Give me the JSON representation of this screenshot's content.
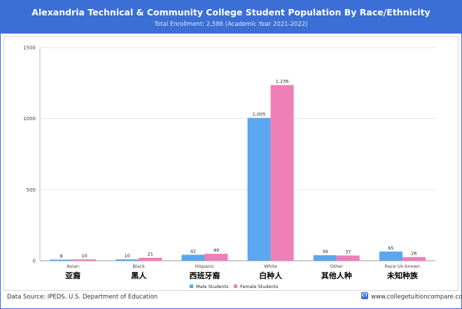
{
  "header": {
    "title": "Alexandria Technical & Community College Student Population By Race/Ethnicity",
    "subtitle": "Total Enrollment: 2,586 (Academic Year 2021-2022)"
  },
  "footer": {
    "source": "Data Source: IPEDS, U.S. Department of Education",
    "site": "www.collegetuitioncompare.com",
    "logo_text": "CT"
  },
  "colors": {
    "male": "#5aa6f0",
    "female": "#f07eb9",
    "header": "#3b6fd6"
  },
  "chart_data": {
    "type": "bar",
    "categories": [
      "Asian",
      "Black",
      "Hispanic",
      "White",
      "Other",
      "Race Un-known"
    ],
    "category_annotations": [
      "亚裔",
      "黑人",
      "西班牙裔",
      "白种人",
      "其他人种",
      "未知种族"
    ],
    "series": [
      {
        "name": "Male Students",
        "values": [
          8,
          10,
          42,
          1005,
          39,
          65
        ],
        "value_labels": [
          "8",
          "10",
          "42",
          "1,005",
          "39",
          "65"
        ]
      },
      {
        "name": "Female Students",
        "values": [
          10,
          21,
          49,
          1236,
          37,
          26
        ],
        "value_labels": [
          "10",
          "21",
          "49",
          "1,236",
          "37",
          "26"
        ]
      }
    ],
    "ylim": [
      0,
      1500
    ],
    "yticks": [
      0,
      500,
      1000,
      1500
    ],
    "grid": true,
    "legend_position": "bottom-center"
  }
}
